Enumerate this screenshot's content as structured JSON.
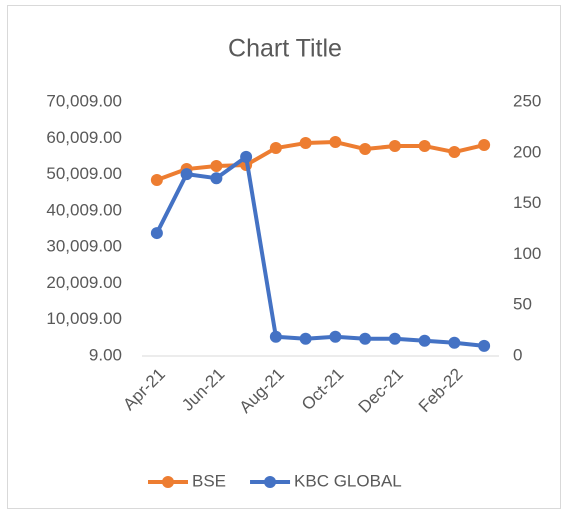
{
  "chart_data": {
    "type": "line",
    "title": "Chart Title",
    "categories": [
      "Apr-21",
      null,
      "Jun-21",
      null,
      "Aug-21",
      null,
      "Oct-21",
      null,
      "Dec-21",
      null,
      "Feb-22",
      null
    ],
    "series": [
      {
        "name": "BSE",
        "color": "#ed7d31",
        "values": [
          48500,
          51530,
          52360,
          52640,
          57320,
          58700,
          58980,
          57050,
          57870,
          57870,
          56220,
          58150
        ]
      },
      {
        "name": "KBC GLOBAL",
        "color": "#4472c4",
        "axis": "y2",
        "values": [
          121,
          179,
          175,
          196,
          19,
          17,
          19,
          17,
          17,
          15,
          13,
          10
        ]
      }
    ],
    "ylim": [
      9,
      70009
    ],
    "yticks": [
      {
        "value": 9,
        "label": "9.00"
      },
      {
        "value": 10009,
        "label": "10,009.00"
      },
      {
        "value": 20009,
        "label": "20,009.00"
      },
      {
        "value": 30009,
        "label": "30,009.00"
      },
      {
        "value": 40009,
        "label": "40,009.00"
      },
      {
        "value": 50009,
        "label": "50,009.00"
      },
      {
        "value": 60009,
        "label": "60,009.00"
      },
      {
        "value": 70009,
        "label": "70,009.00"
      }
    ],
    "y2lim": [
      0,
      250
    ],
    "y2ticks": [
      0,
      50,
      100,
      150,
      200,
      250
    ],
    "grid": false,
    "legend": "bottom"
  }
}
